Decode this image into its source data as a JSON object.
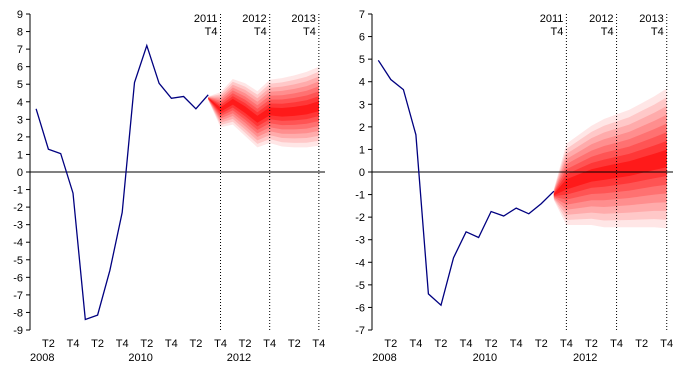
{
  "chart_data": [
    {
      "type": "line",
      "ylim": [
        -9,
        9
      ],
      "yticks": [
        9,
        8,
        7,
        6,
        5,
        4,
        3,
        2,
        1,
        0,
        -1,
        -2,
        -3,
        -4,
        -5,
        -6,
        -7,
        -8,
        -9
      ],
      "xtick_labels": [
        "T2",
        "T4",
        "T2",
        "T4",
        "T2",
        "T4",
        "T2",
        "T4",
        "T2",
        "T4",
        "T2",
        "T4"
      ],
      "year_labels": [
        "2008",
        "2010",
        "2012"
      ],
      "vline_labels": [
        {
          "year": "2011",
          "quarter": "T4"
        },
        {
          "year": "2012",
          "quarter": "T4"
        },
        {
          "year": "2013",
          "quarter": "T4"
        }
      ],
      "line_color": "#000080",
      "fan_color": "#ff0000",
      "series": [
        {
          "values": [
            3.6,
            1.3,
            1.05,
            -1.2,
            -8.4,
            -8.15,
            -5.6,
            -2.3,
            5.1,
            7.2,
            5.05,
            4.2,
            4.3,
            3.6,
            4.4
          ]
        }
      ],
      "fan": {
        "median": [
          4.2,
          3.55,
          4.0,
          3.55,
          3.0,
          3.45,
          3.4,
          3.45,
          3.55,
          3.75
        ],
        "half_width": [
          0.1,
          1.0,
          1.3,
          1.5,
          1.6,
          1.8,
          1.95,
          2.05,
          2.15,
          2.25
        ]
      }
    },
    {
      "type": "line",
      "ylim": [
        -7,
        7
      ],
      "yticks": [
        7,
        6,
        5,
        4,
        3,
        2,
        1,
        0,
        -1,
        -2,
        -3,
        -4,
        -5,
        -6,
        -7
      ],
      "xtick_labels": [
        "T2",
        "T4",
        "T2",
        "T4",
        "T2",
        "T4",
        "T2",
        "T4",
        "T2",
        "T4",
        "T2",
        "T4"
      ],
      "year_labels": [
        "2008",
        "2010",
        "2012"
      ],
      "vline_labels": [
        {
          "year": "2011",
          "quarter": "T4"
        },
        {
          "year": "2012",
          "quarter": "T4"
        },
        {
          "year": "2013",
          "quarter": "T4"
        }
      ],
      "line_color": "#000080",
      "fan_color": "#ff0000",
      "series": [
        {
          "values": [
            4.95,
            4.1,
            3.65,
            1.65,
            -5.4,
            -5.9,
            -3.8,
            -2.65,
            -2.9,
            -1.75,
            -1.95,
            -1.6,
            -1.85,
            -1.4,
            -0.85
          ]
        },
        {
          "values": []
        }
      ],
      "fan": {
        "median": [
          -1.0,
          -0.55,
          -0.35,
          -0.15,
          -0.05,
          0.05,
          0.15,
          0.3,
          0.45,
          0.6
        ],
        "half_width": [
          0.25,
          1.8,
          2.0,
          2.2,
          2.4,
          2.5,
          2.6,
          2.75,
          2.9,
          3.1
        ]
      }
    }
  ]
}
